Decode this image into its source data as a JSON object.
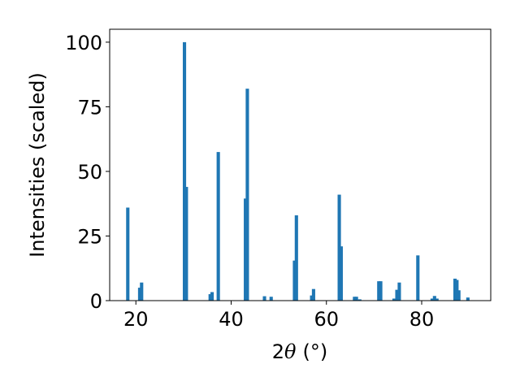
{
  "chart_data": {
    "type": "bar",
    "title": "",
    "xlabel_prefix": "2",
    "xlabel_symbol": "θ",
    "xlabel_unit": "(°)",
    "ylabel": "Intensities (scaled)",
    "xlim": [
      14.5,
      94.5
    ],
    "ylim": [
      0,
      105
    ],
    "bar_width": 0.7,
    "bar_color": "#1f77b4",
    "grid": false,
    "legend": "none",
    "xticks": [
      20,
      40,
      60,
      80
    ],
    "yticks": [
      0,
      25,
      50,
      75,
      100
    ],
    "x": [
      18.3,
      20.8,
      21.2,
      30.2,
      30.6,
      35.6,
      36.0,
      37.3,
      43.0,
      43.4,
      47.0,
      48.4,
      53.3,
      53.7,
      56.9,
      57.3,
      62.7,
      63.1,
      65.9,
      66.3,
      67.0,
      71.0,
      71.4,
      74.2,
      74.8,
      75.3,
      79.2,
      82.2,
      82.7,
      83.2,
      87.0,
      87.4,
      87.8,
      89.7
    ],
    "values": [
      36,
      5,
      7,
      100,
      44,
      2.5,
      3.3,
      57.5,
      39.5,
      82,
      1.7,
      1.5,
      15.5,
      33,
      2,
      4.5,
      41,
      21,
      1.5,
      1.5,
      0.5,
      7.5,
      7.5,
      0.8,
      4.2,
      7,
      17.5,
      0.8,
      1.8,
      0.8,
      8.5,
      8,
      4,
      1.2
    ]
  }
}
